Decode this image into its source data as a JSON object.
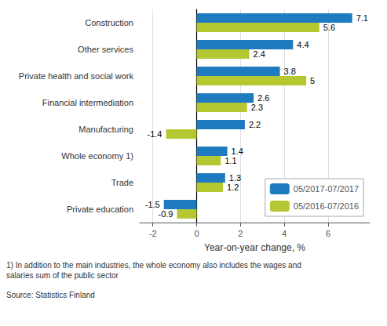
{
  "chart_data": {
    "type": "bar",
    "orientation": "horizontal",
    "categories": [
      "Construction",
      "Other services",
      "Private health and social work",
      "Financial intermediation",
      "Manufacturing",
      "Whole economy 1)",
      "Trade",
      "Private education"
    ],
    "series": [
      {
        "name": "05/2017-07/2017",
        "color": "#1f7bc0",
        "values": [
          7.1,
          4.4,
          3.8,
          2.6,
          2.2,
          1.4,
          1.3,
          -1.5
        ]
      },
      {
        "name": "05/2016-07/2016",
        "color": "#b5c832",
        "values": [
          5.6,
          2.4,
          5.0,
          2.3,
          -1.4,
          1.1,
          1.2,
          -0.9
        ]
      }
    ],
    "xlabel": "Year-on-year change, %",
    "xlim": [
      -2.6,
      7.9
    ],
    "xticks": [
      -2,
      0,
      2,
      4,
      6
    ],
    "grid": true,
    "legend": "lower right",
    "data_labels": true,
    "annotations": [
      "1) In addition to the main industries, the whole economy also includes the wages and\nsalaries sum of the public sector",
      "Source: Statistics Finland"
    ]
  }
}
